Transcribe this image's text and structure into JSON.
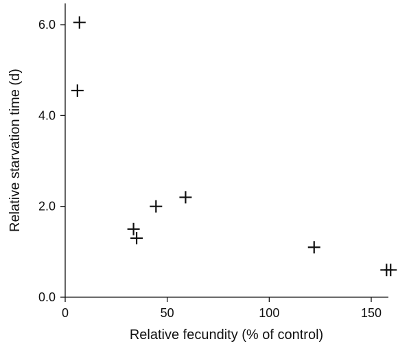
{
  "chart_data": {
    "type": "scatter",
    "title": "",
    "xlabel": "Relative fecundity (% of control)",
    "ylabel": "Relative starvation time (d)",
    "xlim": [
      0,
      160
    ],
    "ylim": [
      0,
      6.5
    ],
    "xticks": [
      0,
      50,
      100,
      150
    ],
    "xtick_labels": [
      "0",
      "50",
      "100",
      "150"
    ],
    "yticks": [
      0,
      2,
      4,
      6
    ],
    "ytick_labels": [
      "0.0",
      "2.0",
      "4.0",
      "6.0"
    ],
    "grid": false,
    "legend": "none",
    "marker": "plus",
    "color": "#111111",
    "series": [
      {
        "points": [
          {
            "x": 7,
            "y": 6.05
          },
          {
            "x": 6,
            "y": 4.55
          },
          {
            "x": 33.5,
            "y": 1.5
          },
          {
            "x": 35,
            "y": 1.3
          },
          {
            "x": 44.5,
            "y": 2.0
          },
          {
            "x": 59,
            "y": 2.2
          },
          {
            "x": 122,
            "y": 1.1
          },
          {
            "x": 157.5,
            "y": 0.6
          },
          {
            "x": 159.5,
            "y": 0.6
          }
        ]
      }
    ]
  }
}
